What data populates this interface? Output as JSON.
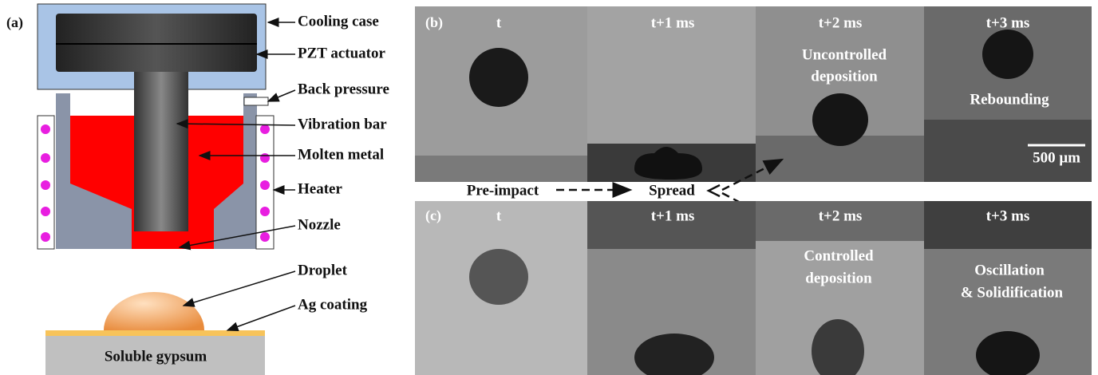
{
  "panel_a": {
    "label": "(a)",
    "components": [
      "Cooling case",
      "PZT actuator",
      "Back pressure",
      "Vibration bar",
      "Molten metal",
      "Heater",
      "Nozzle",
      "Droplet",
      "Ag coating"
    ],
    "substrate": "Soluble gypsum"
  },
  "panel_b": {
    "label": "(b)",
    "frames": [
      "t",
      "t+1 ms",
      "t+2 ms",
      "t+3 ms"
    ],
    "annotations": [
      "Uncontrolled",
      "deposition",
      "Rebounding"
    ],
    "scale_bar": "500 μm"
  },
  "flow": {
    "start": "Pre-impact",
    "end": "Spread"
  },
  "panel_c": {
    "label": "(c)",
    "frames": [
      "t",
      "t+1 ms",
      "t+2 ms",
      "t+3 ms"
    ],
    "annotations": [
      "Controlled",
      "deposition",
      "Oscillation",
      "& Solidification"
    ]
  }
}
